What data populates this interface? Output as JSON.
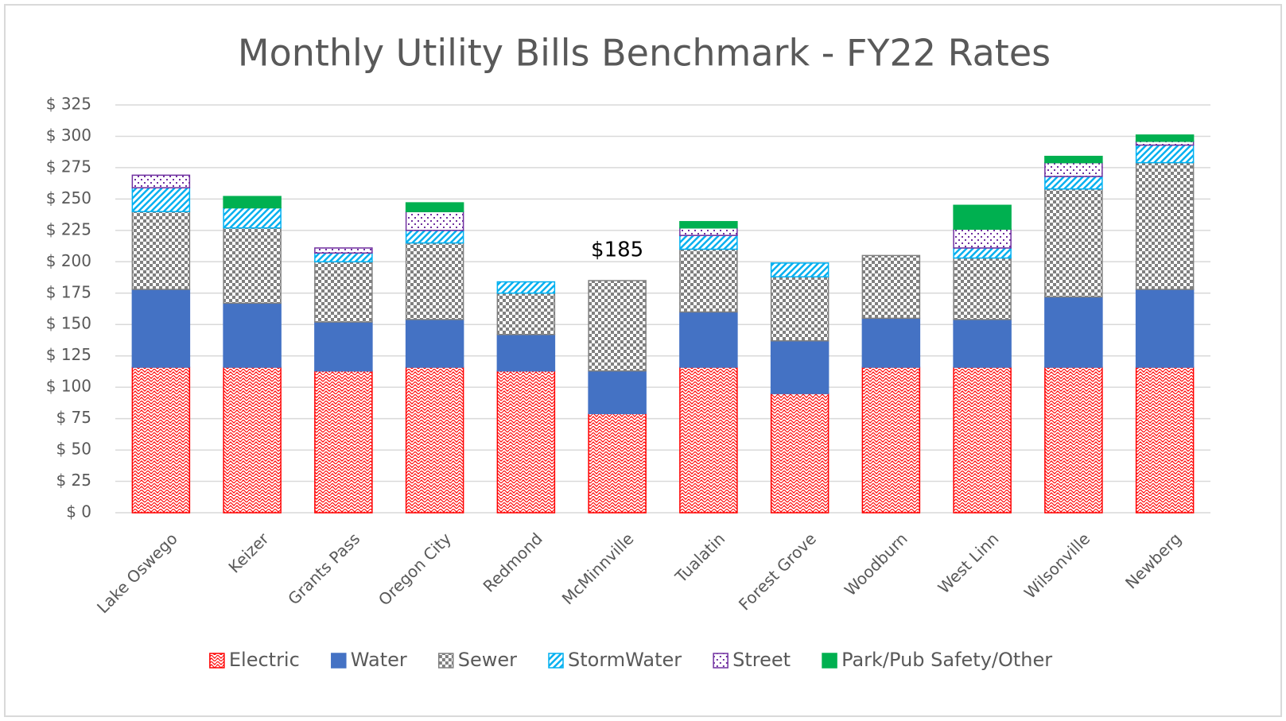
{
  "chart_data": {
    "type": "stacked_bar",
    "title": "Monthly Utility Bills Benchmark - FY22 Rates",
    "categories": [
      "Lake Oswego",
      "Keizer",
      "Grants Pass",
      "Oregon City",
      "Redmond",
      "McMinnville",
      "Tualatin",
      "Forest Grove",
      "Woodburn",
      "West Linn",
      "Wilsonville",
      "Newberg"
    ],
    "series": [
      {
        "name": "Electric",
        "color": "#ff0000",
        "pattern": "wave",
        "values": [
          116,
          116,
          113,
          116,
          113,
          79,
          116,
          95,
          116,
          116,
          116,
          116
        ]
      },
      {
        "name": "Water",
        "color": "#4472c4",
        "pattern": "solid",
        "values": [
          62,
          51,
          39,
          38,
          29,
          34,
          44,
          42,
          39,
          38,
          56,
          62
        ]
      },
      {
        "name": "Sewer",
        "color": "#808080",
        "pattern": "checker",
        "values": [
          62,
          60,
          48,
          61,
          33,
          72,
          50,
          51,
          50,
          49,
          86,
          101
        ]
      },
      {
        "name": "StormWater",
        "color": "#00b0f0",
        "pattern": "diagonal",
        "values": [
          19,
          16,
          7,
          10,
          9,
          0,
          11,
          11,
          0,
          8,
          10,
          14
        ]
      },
      {
        "name": "Street",
        "color": "#7030a0",
        "pattern": "dots",
        "values": [
          10,
          0,
          4,
          15,
          0,
          0,
          6,
          0,
          0,
          15,
          11,
          3
        ]
      },
      {
        "name": "Park/Pub Safety/Other",
        "color": "#00b050",
        "pattern": "solid",
        "values": [
          0,
          9,
          0,
          7,
          0,
          0,
          5,
          0,
          0,
          19,
          5,
          5
        ]
      }
    ],
    "annotations": [
      {
        "text": "$185",
        "category": "McMinnville",
        "value": 185
      }
    ],
    "ylim": [
      0,
      325
    ],
    "yticks": [
      {
        "value": 0,
        "label": "$ 0"
      },
      {
        "value": 25,
        "label": "$ 25"
      },
      {
        "value": 50,
        "label": "$ 50"
      },
      {
        "value": 75,
        "label": "$ 75"
      },
      {
        "value": 100,
        "label": "$ 100"
      },
      {
        "value": 125,
        "label": "$ 125"
      },
      {
        "value": 150,
        "label": "$ 150"
      },
      {
        "value": 175,
        "label": "$ 175"
      },
      {
        "value": 200,
        "label": "$ 200"
      },
      {
        "value": 225,
        "label": "$ 225"
      },
      {
        "value": 250,
        "label": "$ 250"
      },
      {
        "value": 275,
        "label": "$ 275"
      },
      {
        "value": 300,
        "label": "$ 300"
      },
      {
        "value": 325,
        "label": "$ 325"
      }
    ],
    "grid": true,
    "legend": "bottom"
  }
}
